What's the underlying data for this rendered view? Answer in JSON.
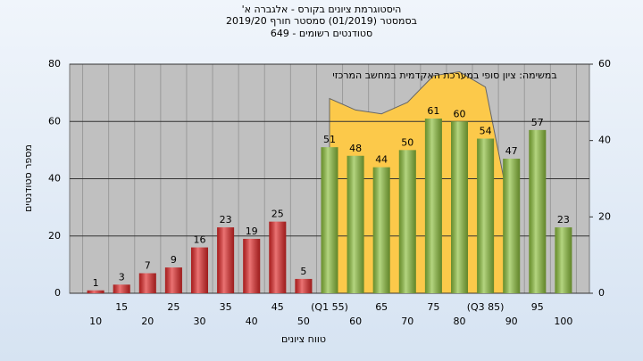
{
  "chart_data": {
    "type": "bar",
    "title": "היסטוגרמת ציונים בקורס - אלגברה א'",
    "subtitle": [
      "בסמסטר (01/2019) סמסטר חורף 2019/20",
      "סטודנטים רשומים - 649"
    ],
    "annotation": "במשימה: ציון סופי במערכת האקדמית במחשב המרכזי",
    "y_label": "מספר סטודנטים",
    "x_label": "טווח ציונים",
    "categories": [
      "10",
      "15",
      "20",
      "25",
      "30",
      "35",
      "40",
      "45",
      "50",
      "(Q1 55)",
      "60",
      "65",
      "70",
      "75",
      "80",
      "(Q3 85)",
      "90",
      "95",
      "100"
    ],
    "series": [
      {
        "color": "#e02828",
        "values": [
          1,
          3,
          7,
          9,
          16,
          23,
          19,
          25,
          5,
          null,
          null,
          null,
          null,
          null,
          null,
          null,
          null,
          null,
          null
        ]
      },
      {
        "color": "#8cbf3c",
        "values": [
          null,
          null,
          null,
          null,
          null,
          null,
          null,
          null,
          null,
          51,
          48,
          44,
          50,
          61,
          60,
          54,
          47,
          57,
          23
        ]
      },
      {
        "type": "area",
        "axis": "y2",
        "color": "#fcc94a",
        "values": [
          null,
          null,
          null,
          null,
          null,
          null,
          null,
          null,
          null,
          51,
          48,
          47,
          50,
          57,
          58,
          54,
          20,
          null,
          null
        ]
      }
    ],
    "ylim": [
      0,
      80
    ],
    "yticks": [
      0,
      20,
      40,
      60,
      80
    ],
    "y2lim": [
      0,
      60
    ],
    "y2ticks": [
      0,
      20,
      40,
      60
    ],
    "grid": true
  }
}
